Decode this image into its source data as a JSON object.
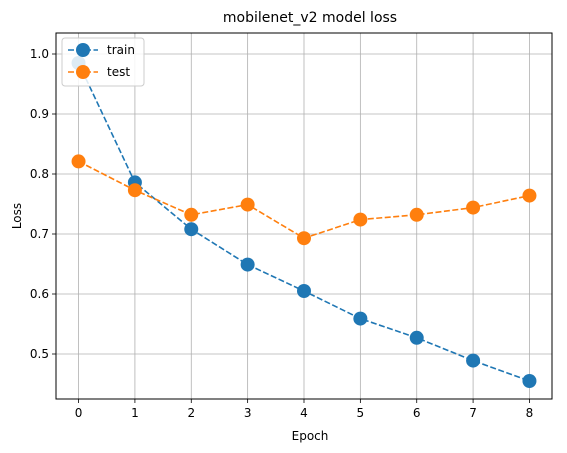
{
  "chart_data": {
    "type": "line",
    "title": "mobilenet_v2 model loss",
    "xlabel": "Epoch",
    "ylabel": "Loss",
    "x": [
      0,
      1,
      2,
      3,
      4,
      5,
      6,
      7,
      8
    ],
    "xlim": [
      -0.4,
      8.4
    ],
    "ylim": [
      0.425,
      1.035
    ],
    "xticks": [
      0,
      1,
      2,
      3,
      4,
      5,
      6,
      7,
      8
    ],
    "yticks": [
      0.5,
      0.6,
      0.7,
      0.8,
      0.9,
      1.0
    ],
    "ytick_labels": [
      "0.5",
      "0.6",
      "0.7",
      "0.8",
      "0.9",
      "1.0"
    ],
    "grid": true,
    "legend": "top-left",
    "series": [
      {
        "name": "train",
        "color": "#1f77b4",
        "linestyle": "dashed",
        "marker": "circle",
        "values": [
          0.985,
          0.786,
          0.708,
          0.649,
          0.605,
          0.559,
          0.527,
          0.489,
          0.455
        ]
      },
      {
        "name": "test",
        "color": "#ff7f0e",
        "linestyle": "dashed",
        "marker": "circle",
        "values": [
          0.821,
          0.773,
          0.732,
          0.749,
          0.693,
          0.724,
          0.732,
          0.744,
          0.764
        ]
      }
    ]
  }
}
